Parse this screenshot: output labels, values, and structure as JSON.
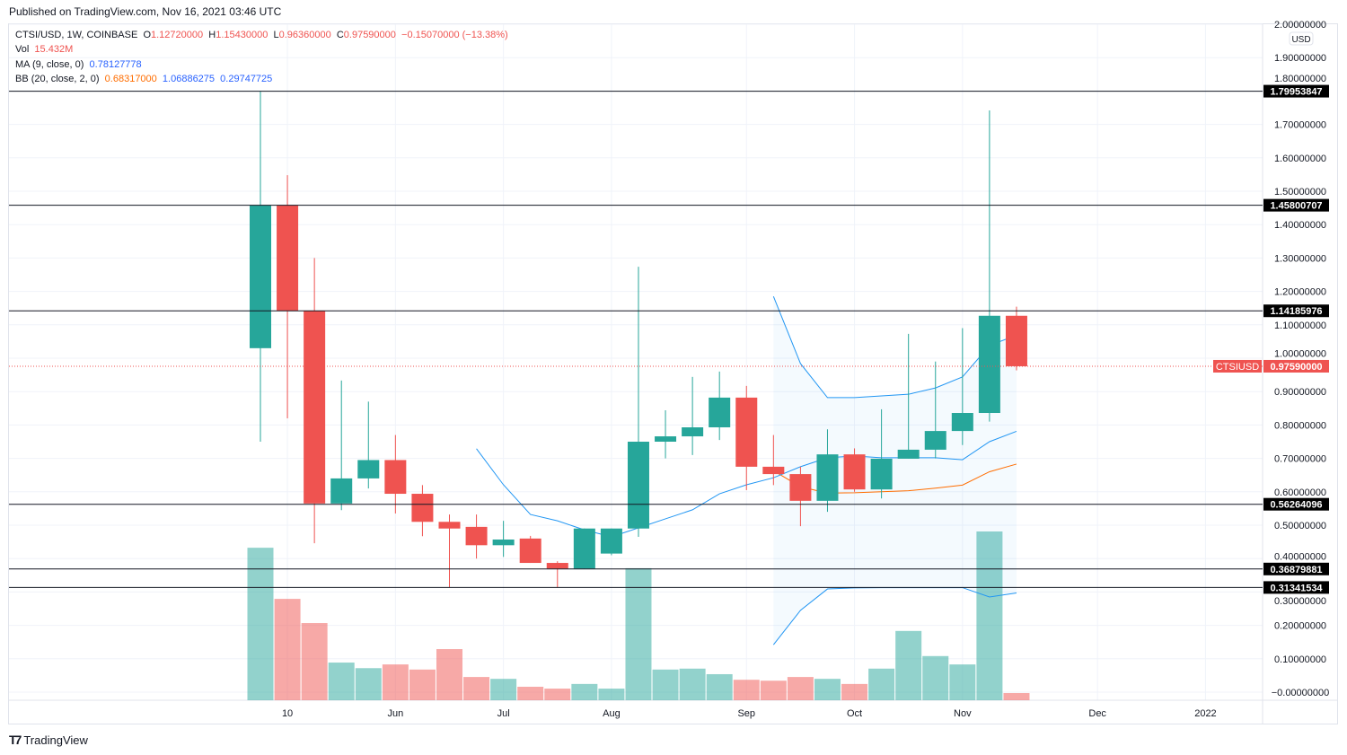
{
  "published": "Published on TradingView.com, Nov 16, 2021 03:46 UTC",
  "legend": {
    "symbol": "CTSI/USD, 1W, COINBASE",
    "o_label": "O",
    "o": "1.12720000",
    "h_label": "H",
    "h": "1.15430000",
    "l_label": "L",
    "l": "0.96360000",
    "c_label": "C",
    "c": "0.97590000",
    "change": "−0.15070000 (−13.38%)",
    "vol_label": "Vol",
    "vol": "15.432M",
    "ma_label": "MA (9, close, 0)",
    "ma": "0.78127778",
    "bb_label": "BB (20, close, 2, 0)",
    "bb_basis": "0.68317000",
    "bb_upper": "1.06886275",
    "bb_lower": "0.29747725"
  },
  "footer": {
    "brand": "TradingView"
  },
  "colors": {
    "up": "#26a69a",
    "down": "#ef5350",
    "ma": "#2196f3",
    "bb_basis": "#ff6d00",
    "bb_band": "#2196f3"
  },
  "chart_data": {
    "type": "candlestick",
    "currency": "USD",
    "ylim": [
      0,
      2.0
    ],
    "yticks": [
      "2.00000000",
      "1.90000000",
      "1.80000000",
      "1.70000000",
      "1.60000000",
      "1.50000000",
      "1.40000000",
      "1.30000000",
      "1.20000000",
      "1.10000000",
      "1.00000000",
      "0.90000000",
      "0.80000000",
      "0.70000000",
      "0.60000000",
      "0.50000000",
      "0.40000000",
      "0.30000000",
      "0.20000000",
      "0.10000000",
      "−0.00000000"
    ],
    "xticks": [
      {
        "label": "10",
        "bar": 1
      },
      {
        "label": "Jun",
        "bar": 5
      },
      {
        "label": "Jul",
        "bar": 9
      },
      {
        "label": "Aug",
        "bar": 13
      },
      {
        "label": "Sep",
        "bar": 18
      },
      {
        "label": "Oct",
        "bar": 22
      },
      {
        "label": "Nov",
        "bar": 26
      },
      {
        "label": "Dec",
        "bar": 31
      },
      {
        "label": "2022",
        "bar": 35
      }
    ],
    "candles": [
      [
        1.03,
        1.8,
        0.75,
        1.457
      ],
      [
        1.457,
        1.548,
        0.82,
        1.142
      ],
      [
        1.142,
        1.3,
        0.446,
        0.565
      ],
      [
        0.565,
        0.933,
        0.545,
        0.64
      ],
      [
        0.64,
        0.87,
        0.61,
        0.695
      ],
      [
        0.695,
        0.77,
        0.535,
        0.594
      ],
      [
        0.594,
        0.62,
        0.467,
        0.51
      ],
      [
        0.51,
        0.532,
        0.314,
        0.49
      ],
      [
        0.495,
        0.532,
        0.4,
        0.44
      ],
      [
        0.44,
        0.513,
        0.405,
        0.457
      ],
      [
        0.46,
        0.468,
        0.387,
        0.387
      ],
      [
        0.387,
        0.392,
        0.314,
        0.37
      ],
      [
        0.37,
        0.49,
        0.37,
        0.49
      ],
      [
        0.415,
        0.49,
        0.41,
        0.49
      ],
      [
        0.49,
        1.274,
        0.465,
        0.75
      ],
      [
        0.75,
        0.844,
        0.7,
        0.766
      ],
      [
        0.766,
        0.944,
        0.71,
        0.793
      ],
      [
        0.793,
        0.96,
        0.755,
        0.882
      ],
      [
        0.882,
        0.917,
        0.605,
        0.675
      ],
      [
        0.675,
        0.77,
        0.62,
        0.653
      ],
      [
        0.653,
        0.675,
        0.497,
        0.573
      ],
      [
        0.573,
        0.787,
        0.54,
        0.712
      ],
      [
        0.712,
        0.73,
        0.6,
        0.607
      ],
      [
        0.607,
        0.847,
        0.58,
        0.699
      ],
      [
        0.699,
        1.073,
        0.699,
        0.726
      ],
      [
        0.726,
        0.99,
        0.7,
        0.782
      ],
      [
        0.782,
        1.09,
        0.74,
        0.836
      ],
      [
        0.836,
        1.742,
        0.81,
        1.127
      ],
      [
        1.127,
        1.1543,
        0.9636,
        0.9759
      ]
    ],
    "volume_millions": [
      328,
      218,
      166,
      81,
      69,
      77,
      66,
      110,
      50,
      46,
      29,
      25,
      35,
      25,
      284,
      66,
      68,
      56,
      44,
      42,
      50,
      46,
      35,
      68,
      149,
      95,
      77,
      363,
      15.432
    ],
    "ma9": {
      "start_bar": 8,
      "values": [
        0.729,
        0.621,
        0.532,
        0.513,
        0.486,
        0.465,
        0.492,
        0.519,
        0.546,
        0.594,
        0.621,
        0.642,
        0.675,
        0.702,
        0.707,
        0.702,
        0.702,
        0.702,
        0.696,
        0.75,
        0.781
      ]
    },
    "bb": {
      "start_bar": 19,
      "upper": [
        1.185,
        0.984,
        0.882,
        0.882,
        0.887,
        0.892,
        0.911,
        0.944,
        1.038,
        1.069
      ],
      "basis": [
        0.663,
        0.615,
        0.596,
        0.597,
        0.6,
        0.603,
        0.611,
        0.62,
        0.66,
        0.683
      ],
      "lower": [
        0.142,
        0.245,
        0.309,
        0.312,
        0.313,
        0.313,
        0.313,
        0.313,
        0.285,
        0.297
      ]
    },
    "horizontal_levels": [
      "1.79953847",
      "1.45800707",
      "1.14185976",
      "0.56264096",
      "0.36879881",
      "0.31341534"
    ],
    "last_price": {
      "label": "CTSIUSD",
      "value": "0.97590000"
    }
  }
}
